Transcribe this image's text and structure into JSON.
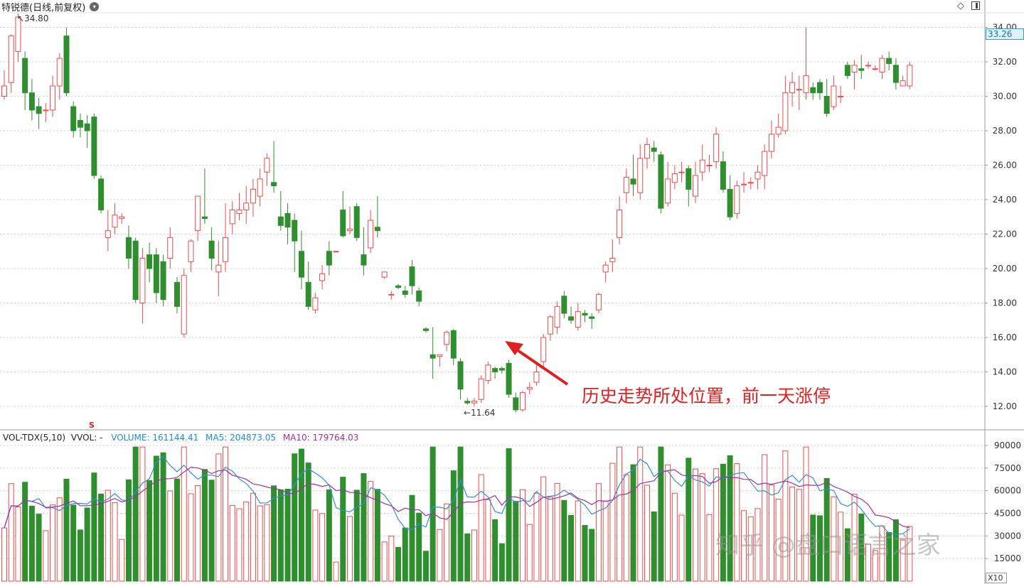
{
  "header": {
    "title": "特锐德(日线,前复权)",
    "dropdown_icon": "chevron-down-icon",
    "diamond_icon": "diamond-icon",
    "layout_icon": "panel-layout-icon"
  },
  "price_panel": {
    "current_price": "33.26",
    "high_marker": "34.80",
    "low_marker": "11.64",
    "y_axis_ticks": [
      "12.00",
      "14.00",
      "16.00",
      "18.00",
      "20.00",
      "22.00",
      "24.00",
      "26.00",
      "28.00",
      "30.00",
      "32.00",
      "34.00"
    ],
    "annotation": "历史走势所处位置，前一天涨停",
    "marker_s": "S",
    "colors": {
      "up": "#f04a4a",
      "down": "#2f8f2f",
      "annotation": "#e02020",
      "price_box": "#2f9bd8"
    }
  },
  "volume_panel": {
    "indicator": "VOL-TDX(5,10)",
    "vvol": "VVOL: -",
    "volume_label": "VOLUME: 161144.41",
    "ma5_label": "MA5: 204873.05",
    "ma10_label": "MA10: 179764.03",
    "y_axis_ticks": [
      "15000",
      "30000",
      "45000",
      "60000",
      "75000",
      "90000"
    ],
    "multiplier": "X10",
    "colors": {
      "volume": "#1a8fd6",
      "ma5": "#2f8fd8",
      "ma10": "#a030a0"
    }
  },
  "watermark": "知乎 @盘口语言之家",
  "chart_data": {
    "type": "candlestick",
    "y_range_price": [
      11,
      35
    ],
    "y_range_volume": [
      0,
      95000
    ],
    "candles": [
      [
        30.0,
        30.6,
        29.8,
        31.5
      ],
      [
        30.8,
        33.5,
        30.2,
        33.6
      ],
      [
        32.6,
        34.6,
        32.0,
        34.8
      ],
      [
        32.2,
        30.2,
        29.2,
        32.6
      ],
      [
        30.2,
        29.2,
        28.6,
        31.0
      ],
      [
        29.4,
        29.0,
        28.1,
        29.9
      ],
      [
        29.2,
        29.2,
        28.5,
        29.6
      ],
      [
        29.2,
        30.6,
        28.8,
        31.2
      ],
      [
        30.6,
        32.2,
        29.8,
        32.5
      ],
      [
        33.5,
        30.2,
        30.0,
        34.0
      ],
      [
        29.4,
        28.0,
        27.6,
        29.7
      ],
      [
        28.6,
        28.2,
        27.6,
        29.0
      ],
      [
        28.4,
        28.0,
        27.0,
        28.9
      ],
      [
        28.8,
        25.4,
        25.2,
        29.0
      ],
      [
        25.2,
        23.4,
        23.2,
        25.4
      ],
      [
        21.8,
        22.2,
        21.0,
        23.4
      ],
      [
        22.4,
        23.1,
        22.0,
        23.8
      ],
      [
        22.9,
        23.0,
        22.6,
        23.2
      ],
      [
        21.8,
        20.6,
        20.0,
        22.5
      ],
      [
        21.6,
        18.2,
        18.0,
        21.8
      ],
      [
        18.0,
        20.6,
        16.8,
        21.2
      ],
      [
        20.8,
        20.0,
        19.2,
        21.5
      ],
      [
        20.8,
        18.6,
        18.0,
        21.2
      ],
      [
        20.4,
        18.2,
        17.8,
        20.8
      ],
      [
        20.6,
        21.8,
        20.0,
        22.4
      ],
      [
        19.2,
        17.8,
        17.4,
        19.5
      ],
      [
        16.2,
        19.6,
        16.0,
        20.0
      ],
      [
        20.4,
        21.6,
        19.8,
        21.7
      ],
      [
        22.2,
        24.2,
        21.6,
        24.2
      ],
      [
        23.0,
        22.9,
        22.6,
        25.8
      ],
      [
        21.6,
        20.6,
        19.9,
        22.4
      ],
      [
        19.8,
        20.2,
        18.4,
        21.6
      ],
      [
        20.4,
        21.8,
        19.8,
        23.8
      ],
      [
        22.6,
        23.4,
        22.0,
        23.9
      ],
      [
        23.2,
        23.4,
        22.8,
        24.4
      ],
      [
        23.4,
        23.8,
        22.6,
        24.8
      ],
      [
        23.8,
        24.6,
        23.0,
        25.2
      ],
      [
        24.2,
        25.2,
        23.6,
        25.8
      ],
      [
        25.6,
        26.4,
        24.8,
        26.7
      ],
      [
        25.0,
        24.8,
        24.4,
        27.4
      ],
      [
        23.0,
        22.5,
        22.2,
        24.5
      ],
      [
        23.2,
        22.4,
        21.4,
        23.8
      ],
      [
        22.8,
        21.6,
        19.8,
        23.2
      ],
      [
        21.0,
        19.5,
        18.8,
        22.2
      ],
      [
        19.2,
        17.8,
        17.6,
        20.4
      ],
      [
        17.6,
        18.3,
        17.4,
        18.6
      ],
      [
        19.3,
        19.7,
        18.8,
        20.2
      ],
      [
        21.0,
        20.2,
        19.6,
        21.6
      ],
      [
        21.0,
        21.0,
        21.0,
        21.0
      ],
      [
        23.4,
        21.9,
        21.8,
        24.5
      ],
      [
        22.2,
        22.3,
        22.0,
        23.6
      ],
      [
        23.6,
        21.8,
        21.6,
        23.8
      ],
      [
        20.8,
        20.2,
        19.6,
        22.4
      ],
      [
        21.2,
        22.8,
        20.9,
        23.4
      ],
      [
        22.4,
        22.2,
        21.8,
        24.2
      ],
      [
        19.5,
        19.8,
        19.4,
        19.8
      ],
      [
        18.5,
        18.5,
        18.2,
        18.7
      ],
      [
        19.0,
        18.9,
        18.8,
        19.1
      ],
      [
        18.7,
        18.5,
        18.3,
        19.0
      ],
      [
        20.1,
        19.0,
        18.5,
        20.5
      ],
      [
        18.7,
        18.1,
        17.8,
        18.9
      ],
      [
        16.5,
        16.4,
        16.3,
        16.6
      ],
      [
        15.0,
        14.8,
        13.6,
        16.6
      ],
      [
        14.9,
        15.0,
        14.3,
        15.0
      ],
      [
        15.6,
        16.3,
        15.2,
        16.4
      ],
      [
        16.4,
        14.8,
        14.4,
        16.5
      ],
      [
        14.6,
        13.0,
        12.4,
        14.8
      ],
      [
        12.3,
        12.2,
        12.1,
        12.5
      ],
      [
        12.2,
        12.3,
        12.0,
        12.5
      ],
      [
        12.4,
        13.6,
        12.2,
        13.8
      ],
      [
        13.5,
        14.4,
        13.3,
        14.6
      ],
      [
        14.2,
        14.0,
        13.6,
        14.3
      ],
      [
        14.2,
        14.1,
        13.9,
        14.3
      ],
      [
        14.5,
        12.7,
        12.5,
        14.7
      ],
      [
        12.5,
        11.8,
        11.64,
        12.8
      ],
      [
        11.8,
        12.8,
        11.7,
        12.9
      ],
      [
        13.0,
        13.1,
        12.7,
        13.4
      ],
      [
        13.4,
        14.0,
        13.2,
        14.5
      ],
      [
        14.6,
        16.0,
        14.3,
        16.2
      ],
      [
        16.2,
        17.2,
        15.8,
        17.3
      ],
      [
        16.6,
        17.8,
        16.2,
        18.1
      ],
      [
        18.4,
        17.4,
        17.1,
        18.7
      ],
      [
        17.2,
        17.0,
        16.8,
        17.8
      ],
      [
        16.6,
        17.5,
        16.4,
        18.0
      ],
      [
        17.4,
        17.3,
        16.9,
        17.6
      ],
      [
        17.2,
        17.1,
        16.5,
        17.4
      ],
      [
        17.6,
        18.5,
        17.4,
        18.6
      ],
      [
        19.8,
        20.2,
        19.2,
        20.4
      ],
      [
        20.4,
        20.6,
        19.8,
        21.7
      ],
      [
        21.8,
        23.4,
        21.4,
        24.2
      ],
      [
        24.4,
        25.3,
        23.8,
        25.8
      ],
      [
        25.2,
        24.9,
        24.2,
        26.6
      ],
      [
        24.4,
        26.4,
        24.0,
        27.2
      ],
      [
        26.4,
        27.2,
        25.8,
        27.6
      ],
      [
        27.0,
        26.8,
        26.2,
        27.4
      ],
      [
        26.6,
        23.5,
        23.2,
        26.8
      ],
      [
        23.8,
        25.2,
        23.6,
        26.2
      ],
      [
        25.0,
        25.5,
        24.6,
        26.0
      ],
      [
        25.6,
        25.6,
        25.0,
        26.2
      ],
      [
        25.8,
        24.6,
        23.6,
        26.0
      ],
      [
        24.2,
        25.4,
        23.8,
        26.2
      ],
      [
        25.6,
        26.3,
        25.1,
        27.2
      ],
      [
        26.0,
        26.0,
        25.6,
        26.6
      ],
      [
        26.2,
        27.8,
        25.8,
        28.2
      ],
      [
        26.2,
        24.6,
        24.4,
        26.8
      ],
      [
        24.6,
        23.0,
        22.8,
        25.4
      ],
      [
        23.2,
        24.8,
        22.9,
        25.1
      ],
      [
        24.9,
        24.9,
        24.4,
        25.6
      ],
      [
        25.0,
        25.0,
        24.6,
        25.3
      ],
      [
        25.2,
        25.6,
        24.6,
        26.0
      ],
      [
        25.4,
        26.8,
        24.6,
        27.2
      ],
      [
        26.8,
        27.8,
        26.4,
        28.6
      ],
      [
        27.8,
        28.2,
        27.6,
        29.0
      ],
      [
        28.0,
        30.2,
        27.8,
        31.2
      ],
      [
        30.2,
        30.8,
        29.4,
        31.4
      ],
      [
        30.4,
        30.4,
        29.2,
        31.2
      ],
      [
        30.2,
        31.2,
        29.8,
        34.0
      ],
      [
        30.5,
        30.2,
        29.8,
        30.8
      ],
      [
        30.8,
        30.2,
        29.8,
        31.0
      ],
      [
        30.0,
        29.0,
        28.8,
        31.0
      ],
      [
        29.4,
        30.6,
        29.2,
        31.2
      ],
      [
        30.0,
        30.0,
        29.6,
        30.6
      ],
      [
        31.8,
        31.2,
        31.0,
        32.0
      ],
      [
        31.4,
        31.8,
        30.4,
        32.1
      ],
      [
        31.6,
        31.5,
        31.0,
        32.4
      ],
      [
        31.8,
        31.8,
        31.6,
        32.0
      ],
      [
        31.6,
        31.6,
        31.5,
        31.8
      ],
      [
        31.4,
        32.2,
        31.0,
        32.4
      ],
      [
        32.2,
        31.9,
        31.5,
        32.6
      ],
      [
        31.8,
        30.8,
        30.4,
        32.2
      ],
      [
        30.6,
        30.9,
        30.6,
        31.2
      ],
      [
        30.6,
        31.8,
        30.4,
        32.0
      ]
    ]
  }
}
